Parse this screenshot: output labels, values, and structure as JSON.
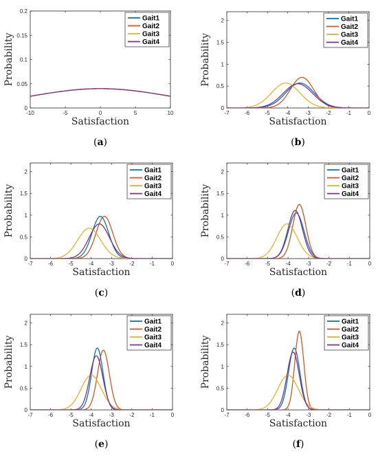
{
  "chart_data": [
    {
      "type": "line",
      "panel_label": "a",
      "xlabel": "Satisfaction",
      "ylabel": "Probability",
      "xlim": [
        -10,
        10
      ],
      "ylim": [
        0,
        0.2
      ],
      "xticks": [
        -10,
        -5,
        0,
        5,
        10
      ],
      "yticks": [
        0,
        0.05,
        0.1,
        0.15,
        0.2
      ],
      "xtick_labels": [
        "-10",
        "-5",
        "0",
        "5",
        "10"
      ],
      "ytick_labels": [
        "0",
        "0.05",
        "0.1",
        "0.15",
        "0.2"
      ],
      "grid": false,
      "legend": "top-right",
      "series": [
        {
          "name": "Gait1",
          "mean": 0,
          "std": 10,
          "color": "#0072BD"
        },
        {
          "name": "Gait2",
          "mean": 0,
          "std": 10,
          "color": "#D95319"
        },
        {
          "name": "Gait3",
          "mean": 0,
          "std": 10,
          "color": "#EDB120"
        },
        {
          "name": "Gait4",
          "mean": 0,
          "std": 10,
          "color": "#7E2F8E"
        }
      ]
    },
    {
      "type": "line",
      "panel_label": "b",
      "xlabel": "Satisfaction",
      "ylabel": "Probability",
      "xlim": [
        -7,
        0
      ],
      "ylim": [
        0,
        2.2
      ],
      "xticks": [
        -7,
        -6,
        -5,
        -4,
        -3,
        -2,
        -1,
        0
      ],
      "yticks": [
        0,
        0.5,
        1,
        1.5,
        2
      ],
      "xtick_labels": [
        "-7",
        "-6",
        "-5",
        "-4",
        "-3",
        "-2",
        "-1",
        "0"
      ],
      "ytick_labels": [
        "0",
        "0.5",
        "1",
        "1.5",
        "2"
      ],
      "grid": false,
      "legend": "top-right",
      "series": [
        {
          "name": "Gait1",
          "mean": -3.4,
          "std": 0.7,
          "color": "#0072BD"
        },
        {
          "name": "Gait2",
          "mean": -3.3,
          "std": 0.57,
          "color": "#D95319"
        },
        {
          "name": "Gait3",
          "mean": -4.1,
          "std": 0.7,
          "color": "#EDB120"
        },
        {
          "name": "Gait4",
          "mean": -3.5,
          "std": 0.72,
          "color": "#7E2F8E"
        }
      ]
    },
    {
      "type": "line",
      "panel_label": "c",
      "xlabel": "Satisfaction",
      "ylabel": "Probability",
      "xlim": [
        -7,
        0
      ],
      "ylim": [
        0,
        2.2
      ],
      "xticks": [
        -7,
        -6,
        -5,
        -4,
        -3,
        -2,
        -1,
        0
      ],
      "yticks": [
        0,
        0.5,
        1,
        1.5,
        2
      ],
      "xtick_labels": [
        "-7",
        "-6",
        "-5",
        "-4",
        "-3",
        "-2",
        "-1",
        "0"
      ],
      "ytick_labels": [
        "0",
        "0.5",
        "1",
        "1.5",
        "2"
      ],
      "grid": false,
      "legend": "top-right",
      "series": [
        {
          "name": "Gait1",
          "mean": -3.55,
          "std": 0.41,
          "color": "#0072BD"
        },
        {
          "name": "Gait2",
          "mean": -3.35,
          "std": 0.41,
          "color": "#D95319"
        },
        {
          "name": "Gait3",
          "mean": -4.1,
          "std": 0.57,
          "color": "#EDB120"
        },
        {
          "name": "Gait4",
          "mean": -3.6,
          "std": 0.5,
          "color": "#7E2F8E"
        }
      ]
    },
    {
      "type": "line",
      "panel_label": "d",
      "xlabel": "Satisfaction",
      "ylabel": "Probability",
      "xlim": [
        -7,
        0
      ],
      "ylim": [
        0,
        2.2
      ],
      "xticks": [
        -7,
        -6,
        -5,
        -4,
        -3,
        -2,
        -1,
        0
      ],
      "yticks": [
        0,
        0.5,
        1,
        1.5,
        2
      ],
      "xtick_labels": [
        "-7",
        "-6",
        "-5",
        "-4",
        "-3",
        "-2",
        "-1",
        "0"
      ],
      "ytick_labels": [
        "0",
        "0.5",
        "1",
        "1.5",
        "2"
      ],
      "grid": false,
      "legend": "top-right",
      "series": [
        {
          "name": "Gait1",
          "mean": -3.6,
          "std": 0.38,
          "color": "#0072BD"
        },
        {
          "name": "Gait2",
          "mean": -3.45,
          "std": 0.32,
          "color": "#D95319"
        },
        {
          "name": "Gait3",
          "mean": -4.05,
          "std": 0.5,
          "color": "#EDB120"
        },
        {
          "name": "Gait4",
          "mean": -3.65,
          "std": 0.36,
          "color": "#7E2F8E"
        }
      ]
    },
    {
      "type": "line",
      "panel_label": "e",
      "xlabel": "Satisfaction",
      "ylabel": "Probability",
      "xlim": [
        -7,
        0
      ],
      "ylim": [
        0,
        2.2
      ],
      "xticks": [
        -7,
        -6,
        -5,
        -4,
        -3,
        -2,
        -1,
        0
      ],
      "yticks": [
        0,
        0.5,
        1,
        1.5,
        2
      ],
      "xtick_labels": [
        "-7",
        "-6",
        "-5",
        "-4",
        "-3",
        "-2",
        "-1",
        "0"
      ],
      "ytick_labels": [
        "0",
        "0.5",
        "1",
        "1.5",
        "2"
      ],
      "grid": false,
      "legend": "top-right",
      "series": [
        {
          "name": "Gait1",
          "mean": -3.7,
          "std": 0.28,
          "color": "#0072BD"
        },
        {
          "name": "Gait2",
          "mean": -3.4,
          "std": 0.29,
          "color": "#D95319"
        },
        {
          "name": "Gait3",
          "mean": -4.0,
          "std": 0.5,
          "color": "#EDB120"
        },
        {
          "name": "Gait4",
          "mean": -3.75,
          "std": 0.32,
          "color": "#7E2F8E"
        }
      ]
    },
    {
      "type": "line",
      "panel_label": "f",
      "xlabel": "Satisfaction",
      "ylabel": "Probability",
      "xlim": [
        -7,
        0
      ],
      "ylim": [
        0,
        2.2
      ],
      "xticks": [
        -7,
        -6,
        -5,
        -4,
        -3,
        -2,
        -1,
        0
      ],
      "yticks": [
        0,
        0.5,
        1,
        1.5,
        2
      ],
      "xtick_labels": [
        "-7",
        "-6",
        "-5",
        "-4",
        "-3",
        "-2",
        "-1",
        "0"
      ],
      "ytick_labels": [
        "0",
        "0.5",
        "1",
        "1.5",
        "2"
      ],
      "grid": false,
      "legend": "top-right",
      "series": [
        {
          "name": "Gait1",
          "mean": -3.7,
          "std": 0.28,
          "color": "#0072BD"
        },
        {
          "name": "Gait2",
          "mean": -3.45,
          "std": 0.22,
          "color": "#D95319"
        },
        {
          "name": "Gait3",
          "mean": -4.0,
          "std": 0.5,
          "color": "#EDB120"
        },
        {
          "name": "Gait4",
          "mean": -3.75,
          "std": 0.3,
          "color": "#7E2F8E"
        }
      ]
    }
  ]
}
